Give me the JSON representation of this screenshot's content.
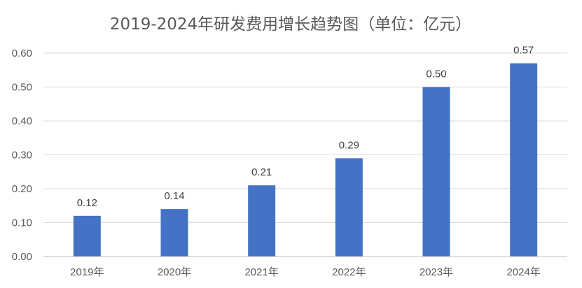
{
  "chart_data": {
    "type": "bar",
    "title": "2019-2024年研发费用增长趋势图（单位：亿元）",
    "xlabel": "",
    "ylabel": "",
    "categories": [
      "2019年",
      "2020年",
      "2021年",
      "2022年",
      "2023年",
      "2024年"
    ],
    "series": [
      {
        "values": [
          0.12,
          0.14,
          0.21,
          0.29,
          0.5,
          0.57
        ],
        "value_labels": [
          "0.12",
          "0.14",
          "0.21",
          "0.29",
          "0.50",
          "0.57"
        ],
        "color": "#4472c4"
      }
    ],
    "ylim": [
      0,
      0.6
    ],
    "yticks": [
      0,
      0.1,
      0.2,
      0.3,
      0.4,
      0.5,
      0.6
    ],
    "ytick_labels": [
      "0.00",
      "0.10",
      "0.20",
      "0.30",
      "0.40",
      "0.50",
      "0.60"
    ],
    "grid": true,
    "legend": "none",
    "data_labels": true
  }
}
